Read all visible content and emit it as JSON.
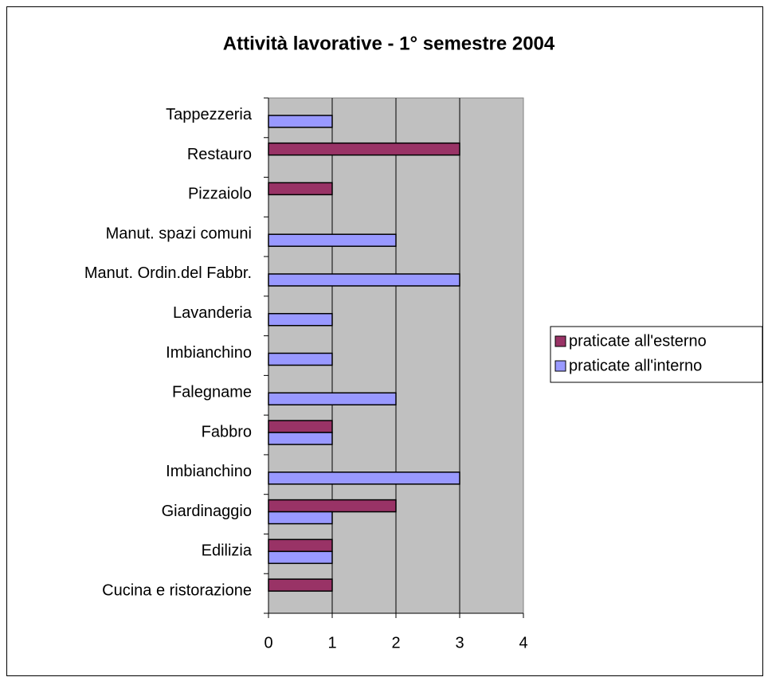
{
  "chart_data": {
    "type": "bar",
    "orientation": "horizontal",
    "title": "Attività lavorative - 1° semestre 2004",
    "categories": [
      "Cucina e ristorazione",
      "Edilizia",
      "Giardinaggio",
      "Imbianchino",
      "Fabbro",
      "Falegname",
      "Imbianchino",
      "Lavanderia",
      "Manut. Ordin.del Fabbr.",
      "Manut. spazi comuni",
      "Pizzaiolo",
      "Restauro",
      "Tappezzeria"
    ],
    "series": [
      {
        "name": "praticate all'esterno",
        "color": "#993366",
        "values": [
          1,
          1,
          2,
          0,
          1,
          0,
          0,
          0,
          0,
          0,
          1,
          3,
          0
        ]
      },
      {
        "name": "praticate all'interno",
        "color": "#9999ff",
        "values": [
          0,
          1,
          1,
          3,
          1,
          2,
          1,
          1,
          3,
          2,
          0,
          0,
          1
        ]
      }
    ],
    "xlim": [
      0,
      4
    ],
    "xticks": [
      0,
      1,
      2,
      3,
      4
    ],
    "grid": true,
    "legend": "right"
  }
}
